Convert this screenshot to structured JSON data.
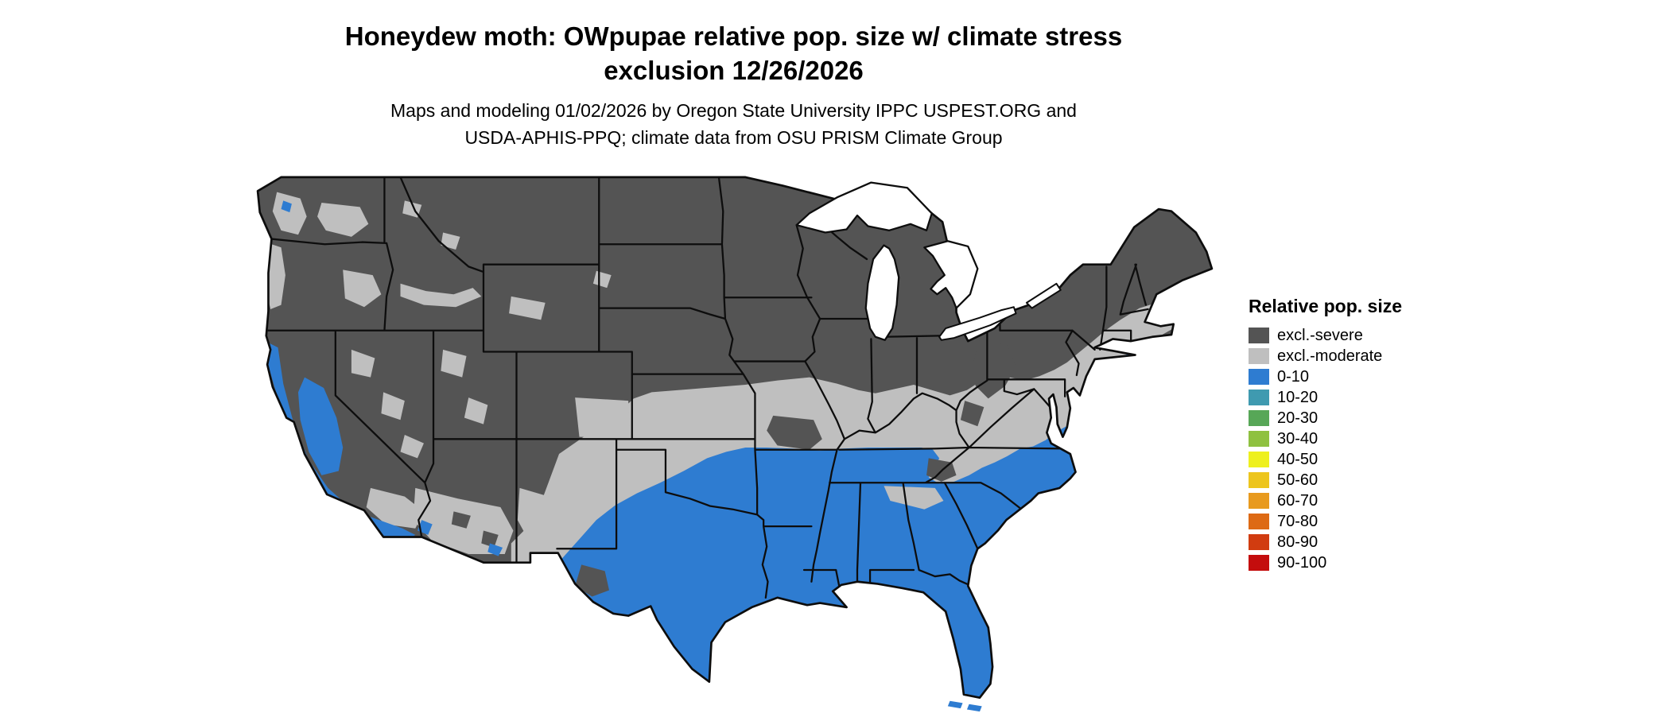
{
  "title": {
    "line1": "Honeydew moth: OWpupae relative pop. size w/ climate stress",
    "line2": "exclusion 12/26/2026"
  },
  "subtitle": {
    "line1": "Maps and modeling 01/02/2026 by Oregon State University IPPC USPEST.ORG and",
    "line2": "USDA-APHIS-PPQ; climate data from OSU PRISM Climate Group"
  },
  "legend": {
    "title": "Relative pop. size",
    "entries": [
      {
        "label": "excl.-severe",
        "color": "#545454"
      },
      {
        "label": "excl.-moderate",
        "color": "#bfbfbf"
      },
      {
        "label": "0-10",
        "color": "#2e7cd1"
      },
      {
        "label": "10-20",
        "color": "#3f9ab0"
      },
      {
        "label": "20-30",
        "color": "#57a757"
      },
      {
        "label": "30-40",
        "color": "#8fc140"
      },
      {
        "label": "40-50",
        "color": "#eef01e"
      },
      {
        "label": "50-60",
        "color": "#edc51d"
      },
      {
        "label": "60-70",
        "color": "#e89a1e"
      },
      {
        "label": "70-80",
        "color": "#dd6a14"
      },
      {
        "label": "80-90",
        "color": "#d13c10"
      },
      {
        "label": "90-100",
        "color": "#c40d0d"
      }
    ]
  },
  "map": {
    "description": "Continental US raster map: northern and mountain regions excluded-severe (dark gray), a central transition band excluded-moderate (light gray), southern states and coastal California relative pop. size 0-10 (blue)",
    "colors": {
      "severe": "#545454",
      "moderate": "#bfbfbf",
      "low": "#2e7cd1",
      "water": "#ffffff",
      "border": "#0d0d0d"
    }
  }
}
